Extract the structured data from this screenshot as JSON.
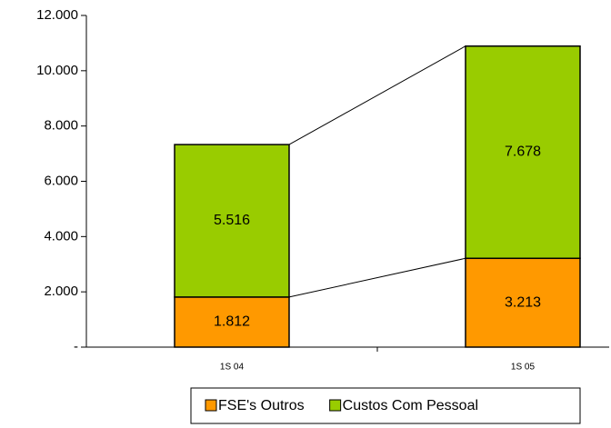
{
  "chart_data": {
    "type": "stacked_bar",
    "categories": [
      "1S 04",
      "1S 05"
    ],
    "series": [
      {
        "name": "FSE's Outros",
        "color": "#ff9900",
        "values": [
          1812,
          3213
        ],
        "value_labels": [
          "1.812",
          "3.213"
        ]
      },
      {
        "name": "Custos Com Pessoal",
        "color": "#99cc00",
        "values": [
          5516,
          7678
        ],
        "value_labels": [
          "5.516",
          "7.678"
        ]
      }
    ],
    "ylim": [
      0,
      12000
    ],
    "yticks": [
      {
        "value": 0,
        "label": "-"
      },
      {
        "value": 2000,
        "label": "2.000"
      },
      {
        "value": 4000,
        "label": "4.000"
      },
      {
        "value": 6000,
        "label": "6.000"
      },
      {
        "value": 8000,
        "label": "8.000"
      },
      {
        "value": 10000,
        "label": "10.000"
      },
      {
        "value": 12000,
        "label": "12.000"
      }
    ],
    "legend": "bottom"
  }
}
